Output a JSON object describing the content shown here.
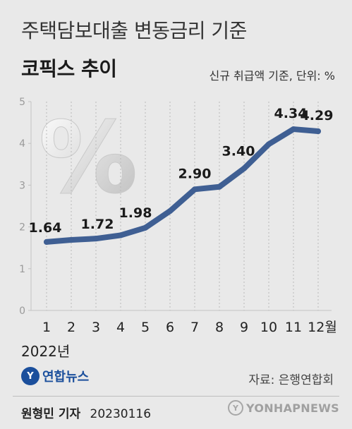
{
  "header": {
    "title_main": "주택담보대출 변동금리 기준",
    "title_sub": "코픽스 추이",
    "unit_note": "신규 취급액 기준, 단위: %"
  },
  "chart_data": {
    "type": "line",
    "categories": [
      "1",
      "2",
      "3",
      "4",
      "5",
      "6",
      "7",
      "8",
      "9",
      "10",
      "11",
      "12월"
    ],
    "values": [
      1.64,
      1.69,
      1.72,
      1.8,
      1.98,
      2.38,
      2.9,
      2.96,
      3.4,
      3.98,
      4.34,
      4.29
    ],
    "labeled_values": [
      {
        "index": 0,
        "label": "1.64"
      },
      {
        "index": 2,
        "label": "1.72"
      },
      {
        "index": 4,
        "label": "1.98"
      },
      {
        "index": 6,
        "label": "2.90"
      },
      {
        "index": 8,
        "label": "3.40"
      },
      {
        "index": 10,
        "label": "4.34"
      },
      {
        "index": 11,
        "label": "4.29"
      }
    ],
    "ylim": [
      0,
      5
    ],
    "yticks": [
      "0",
      "1",
      "2",
      "3",
      "4",
      "5"
    ],
    "grid": "vertical-dotted",
    "line_color": "#3f5f93",
    "xlabel": "2022년"
  },
  "decor": {
    "percent_symbol": "%"
  },
  "footer": {
    "logo_text": "연합뉴스",
    "logo_mark": "Y",
    "source": "자료: 은행연합회",
    "byline_name": "원형민 기자",
    "byline_date": "20230116",
    "watermark": "YONHAPNEWS",
    "watermark_mark": "Y"
  }
}
